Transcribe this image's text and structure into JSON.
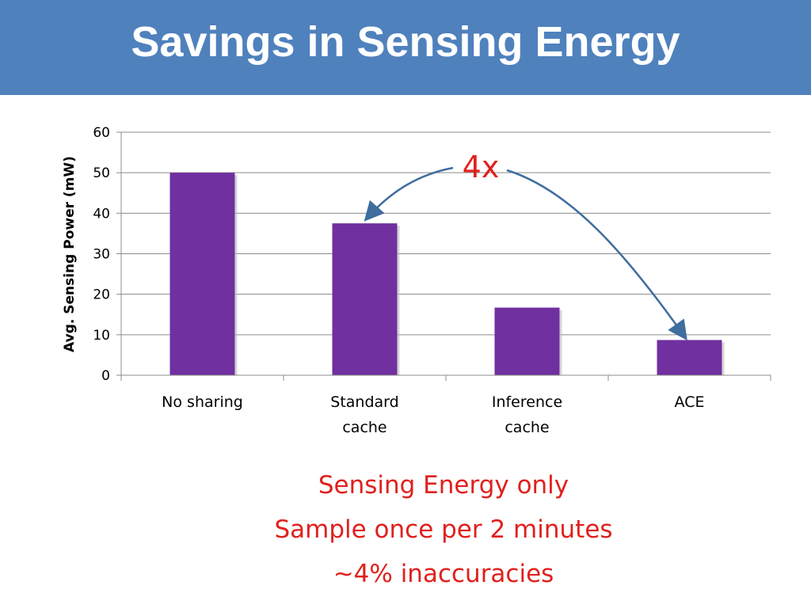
{
  "slide": {
    "title": "Savings in Sensing Energy"
  },
  "colors": {
    "bar": "#7030a0",
    "header": "#4f81bd",
    "annotation": "#e0201d",
    "arrow": "#3f6d9e"
  },
  "chart_data": {
    "type": "bar",
    "categories": [
      [
        "No sharing"
      ],
      [
        "Standard",
        "cache"
      ],
      [
        "Inference",
        "cache"
      ],
      [
        "ACE"
      ]
    ],
    "values": [
      50,
      37.5,
      16.7,
      8.7
    ],
    "ylabel": "Avg. Sensing Power (mW)",
    "ylim": [
      0,
      60
    ],
    "yticks": [
      0,
      10,
      20,
      30,
      40,
      50,
      60
    ],
    "grid": true,
    "annotation": {
      "text": "4x",
      "arrows_to": [
        "Standard cache",
        "ACE"
      ]
    }
  },
  "notes": [
    "Sensing Energy only",
    "Sample once per 2 minutes",
    "~4% inaccuracies"
  ]
}
